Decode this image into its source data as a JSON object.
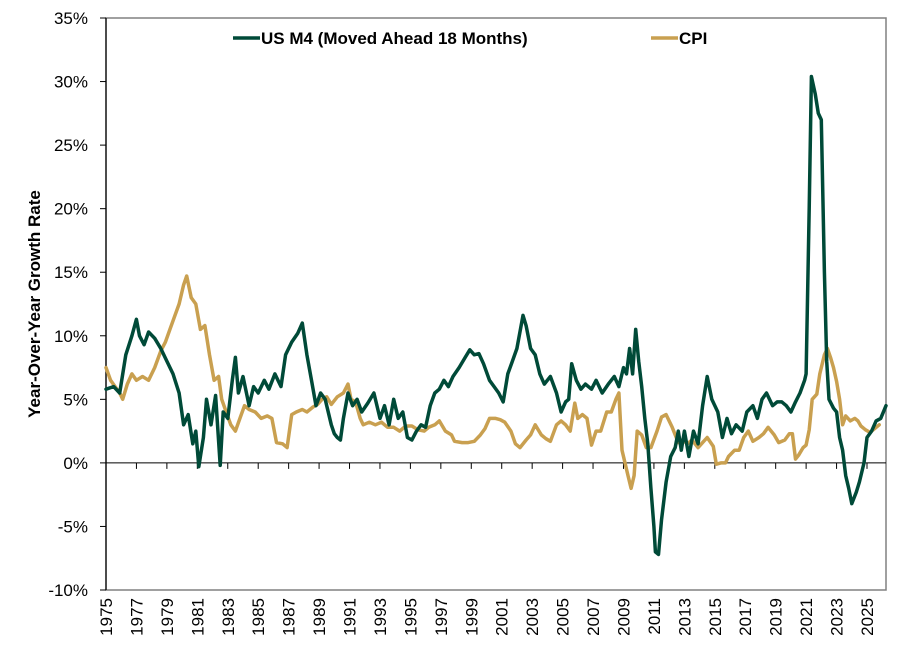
{
  "chart_data": {
    "type": "line",
    "title": "",
    "xlabel": "",
    "ylabel": "Year-Over-Year Growth Rate",
    "ylim": [
      -10,
      35
    ],
    "xlim": [
      1975,
      2026.25
    ],
    "y_ticks": [
      -10,
      -5,
      0,
      5,
      10,
      15,
      20,
      25,
      30,
      35
    ],
    "y_tick_labels": [
      "-10%",
      "-5%",
      "0%",
      "5%",
      "10%",
      "15%",
      "20%",
      "25%",
      "30%",
      "35%"
    ],
    "x_ticks": [
      1975,
      1977,
      1979,
      1981,
      1983,
      1985,
      1987,
      1989,
      1991,
      1993,
      1995,
      1997,
      1999,
      2001,
      2003,
      2005,
      2007,
      2009,
      2011,
      2013,
      2015,
      2017,
      2019,
      2021,
      2023,
      2025
    ],
    "x_tick_labels": [
      "1975",
      "1977",
      "1979",
      "1981",
      "1983",
      "1985",
      "1987",
      "1989",
      "1991",
      "1993",
      "1995",
      "1997",
      "1999",
      "2001",
      "2003",
      "2005",
      "2007",
      "2009",
      "2011",
      "2013",
      "2015",
      "2017",
      "2019",
      "2021",
      "2023",
      "2025"
    ],
    "grid": false,
    "legend_position": "top",
    "series": [
      {
        "name": "US M4 (Moved Ahead 18 Months)",
        "color": "#004a38",
        "x": [
          1975.0,
          1975.5,
          1975.9,
          1976.3,
          1976.7,
          1977.0,
          1977.2,
          1977.5,
          1977.8,
          1978.2,
          1978.6,
          1979.0,
          1979.4,
          1979.8,
          1980.1,
          1980.4,
          1980.7,
          1980.9,
          1981.1,
          1981.4,
          1981.6,
          1981.9,
          1982.2,
          1982.5,
          1982.7,
          1983.0,
          1983.3,
          1983.5,
          1983.7,
          1984.0,
          1984.4,
          1984.7,
          1985.0,
          1985.4,
          1985.7,
          1986.1,
          1986.5,
          1986.8,
          1987.2,
          1987.6,
          1987.9,
          1988.2,
          1988.5,
          1988.8,
          1989.1,
          1989.4,
          1989.8,
          1990.0,
          1990.2,
          1990.4,
          1990.6,
          1990.9,
          1991.2,
          1991.5,
          1991.8,
          1992.2,
          1992.6,
          1993.0,
          1993.3,
          1993.6,
          1993.9,
          1994.2,
          1994.5,
          1994.8,
          1995.1,
          1995.4,
          1995.7,
          1996.0,
          1996.3,
          1996.6,
          1996.9,
          1997.2,
          1997.5,
          1997.8,
          1998.2,
          1998.6,
          1998.9,
          1999.2,
          1999.5,
          1999.8,
          2000.2,
          2000.5,
          2000.8,
          2001.1,
          2001.4,
          2001.7,
          2002.0,
          2002.4,
          2002.6,
          2002.9,
          2003.2,
          2003.5,
          2003.8,
          2004.2,
          2004.6,
          2004.9,
          2005.2,
          2005.4,
          2005.6,
          2005.9,
          2006.2,
          2006.5,
          2006.9,
          2007.2,
          2007.6,
          2008.0,
          2008.4,
          2008.7,
          2009.0,
          2009.2,
          2009.4,
          2009.6,
          2009.8,
          2010.0,
          2010.2,
          2010.4,
          2010.6,
          2010.8,
          2011.0,
          2011.1,
          2011.3,
          2011.5,
          2011.8,
          2012.1,
          2012.4,
          2012.6,
          2012.8,
          2013.0,
          2013.3,
          2013.6,
          2013.9,
          2014.2,
          2014.5,
          2014.8,
          2015.2,
          2015.5,
          2015.8,
          2016.1,
          2016.4,
          2016.8,
          2017.1,
          2017.5,
          2017.8,
          2018.1,
          2018.4,
          2018.8,
          2019.1,
          2019.4,
          2019.7,
          2020.0,
          2020.3,
          2020.6,
          2020.9,
          2021.0,
          2021.2,
          2021.35,
          2021.6,
          2021.8,
          2022.0,
          2022.2,
          2022.35,
          2022.5,
          2022.8,
          2023.0,
          2023.2,
          2023.4,
          2023.6,
          2023.8,
          2024.0,
          2024.3,
          2024.5,
          2024.8,
          2025.0,
          2025.3,
          2025.6,
          2025.9,
          2026.25
        ],
        "values": [
          5.8,
          6.0,
          5.5,
          8.5,
          10.0,
          11.3,
          10.0,
          9.3,
          10.3,
          9.8,
          9.0,
          8.0,
          7.0,
          5.5,
          3.0,
          3.8,
          1.5,
          2.5,
          -0.3,
          2.0,
          5.0,
          3.0,
          5.3,
          -0.2,
          4.0,
          3.5,
          6.5,
          8.3,
          5.5,
          6.8,
          4.5,
          6.0,
          5.5,
          6.5,
          5.8,
          7.0,
          6.0,
          8.5,
          9.5,
          10.2,
          11.0,
          8.5,
          6.5,
          4.5,
          5.5,
          5.0,
          3.0,
          2.3,
          2.0,
          1.8,
          3.5,
          5.5,
          4.5,
          5.0,
          4.0,
          4.7,
          5.5,
          3.5,
          4.5,
          3.0,
          5.0,
          3.5,
          4.0,
          2.0,
          1.8,
          2.5,
          3.0,
          2.8,
          4.5,
          5.5,
          5.8,
          6.5,
          6.0,
          6.8,
          7.5,
          8.3,
          8.9,
          8.5,
          8.6,
          7.8,
          6.5,
          6.0,
          5.5,
          4.8,
          7.0,
          8.0,
          9.0,
          11.6,
          10.8,
          9.0,
          8.5,
          7.0,
          6.2,
          6.8,
          5.5,
          4.0,
          4.8,
          5.0,
          7.8,
          6.5,
          5.8,
          6.2,
          5.8,
          6.5,
          5.5,
          6.2,
          6.8,
          6.0,
          7.5,
          7.0,
          9.0,
          7.0,
          10.5,
          8.0,
          6.0,
          3.5,
          1.5,
          -2.0,
          -5.0,
          -7.0,
          -7.2,
          -4.5,
          -1.5,
          0.5,
          1.2,
          2.5,
          1.0,
          2.5,
          0.5,
          2.5,
          1.5,
          4.5,
          6.8,
          5.0,
          4.0,
          2.0,
          3.5,
          2.3,
          3.0,
          2.5,
          4.0,
          4.5,
          3.5,
          5.0,
          5.5,
          4.5,
          4.8,
          4.8,
          4.5,
          4.0,
          4.8,
          5.5,
          6.5,
          7.0,
          20.0,
          30.4,
          29.0,
          27.5,
          27.0,
          15.0,
          8.0,
          5.0,
          4.3,
          4.0,
          2.0,
          1.0,
          -1.0,
          -2.0,
          -3.2,
          -2.3,
          -1.5,
          0.0,
          2.0,
          2.5,
          3.3,
          3.5,
          4.5
        ]
      },
      {
        "name": "CPI",
        "color": "#c9a050",
        "x": [
          1975.0,
          1975.3,
          1975.6,
          1975.9,
          1976.1,
          1976.4,
          1976.7,
          1977.0,
          1977.4,
          1977.8,
          1978.2,
          1978.6,
          1978.9,
          1979.2,
          1979.5,
          1979.8,
          1980.1,
          1980.3,
          1980.6,
          1980.9,
          1981.2,
          1981.5,
          1981.8,
          1982.1,
          1982.4,
          1982.6,
          1982.9,
          1983.2,
          1983.5,
          1983.8,
          1984.1,
          1984.4,
          1984.8,
          1985.2,
          1985.6,
          1985.9,
          1986.2,
          1986.6,
          1986.9,
          1987.2,
          1987.5,
          1987.9,
          1988.2,
          1988.6,
          1988.9,
          1989.2,
          1989.5,
          1989.8,
          1990.2,
          1990.6,
          1990.9,
          1991.1,
          1991.4,
          1991.7,
          1991.9,
          1992.3,
          1992.7,
          1993.1,
          1993.5,
          1993.9,
          1994.3,
          1994.7,
          1995.1,
          1995.5,
          1995.9,
          1996.2,
          1996.6,
          1996.9,
          1997.3,
          1997.7,
          1997.9,
          1998.4,
          1998.8,
          1999.2,
          1999.6,
          1999.9,
          2000.2,
          2000.6,
          2000.9,
          2001.2,
          2001.6,
          2001.9,
          2002.2,
          2002.6,
          2002.9,
          2003.2,
          2003.6,
          2003.9,
          2004.2,
          2004.6,
          2004.9,
          2005.2,
          2005.5,
          2005.8,
          2006.0,
          2006.3,
          2006.6,
          2006.9,
          2007.2,
          2007.5,
          2007.9,
          2008.2,
          2008.5,
          2008.7,
          2008.9,
          2009.1,
          2009.3,
          2009.5,
          2009.7,
          2009.9,
          2010.2,
          2010.5,
          2010.8,
          2011.2,
          2011.5,
          2011.8,
          2012.2,
          2012.6,
          2012.9,
          2013.2,
          2013.5,
          2013.9,
          2014.2,
          2014.5,
          2014.9,
          2015.1,
          2015.4,
          2015.7,
          2015.9,
          2016.3,
          2016.6,
          2016.9,
          2017.2,
          2017.5,
          2017.9,
          2018.2,
          2018.5,
          2018.9,
          2019.2,
          2019.6,
          2019.9,
          2020.1,
          2020.3,
          2020.5,
          2020.8,
          2021.0,
          2021.2,
          2021.4,
          2021.7,
          2021.9,
          2022.2,
          2022.4,
          2022.6,
          2022.8,
          2023.0,
          2023.2,
          2023.4,
          2023.6,
          2023.9,
          2024.2,
          2024.4,
          2024.6,
          2024.9,
          2025.2,
          2025.5,
          2025.8
        ],
        "values": [
          7.5,
          6.5,
          6.0,
          5.5,
          5.0,
          6.2,
          7.0,
          6.5,
          6.8,
          6.5,
          7.5,
          8.8,
          9.5,
          10.5,
          11.5,
          12.5,
          14.0,
          14.7,
          13.0,
          12.5,
          10.5,
          10.8,
          8.5,
          6.5,
          6.8,
          5.0,
          4.0,
          3.0,
          2.5,
          3.5,
          4.5,
          4.2,
          4.0,
          3.5,
          3.7,
          3.5,
          1.6,
          1.5,
          1.2,
          3.8,
          4.0,
          4.2,
          4.0,
          4.4,
          4.6,
          5.0,
          5.2,
          4.6,
          5.2,
          5.5,
          6.2,
          5.0,
          4.8,
          3.5,
          3.0,
          3.2,
          3.0,
          3.2,
          2.8,
          2.8,
          2.5,
          2.9,
          2.9,
          2.6,
          2.5,
          2.8,
          3.0,
          3.3,
          2.5,
          2.2,
          1.7,
          1.6,
          1.6,
          1.7,
          2.2,
          2.7,
          3.5,
          3.5,
          3.4,
          3.2,
          2.5,
          1.5,
          1.2,
          1.8,
          2.2,
          3.0,
          2.2,
          1.9,
          1.7,
          3.0,
          3.3,
          3.0,
          2.5,
          4.7,
          3.5,
          3.8,
          3.5,
          1.4,
          2.5,
          2.5,
          4.0,
          4.0,
          5.0,
          5.5,
          1.0,
          0.0,
          -1.0,
          -2.0,
          -1.0,
          2.5,
          2.2,
          1.2,
          1.2,
          2.5,
          3.6,
          3.8,
          2.8,
          1.6,
          1.8,
          1.5,
          1.8,
          1.2,
          1.6,
          2.0,
          1.3,
          -0.1,
          0.0,
          0.0,
          0.5,
          1.0,
          1.0,
          2.0,
          2.5,
          1.7,
          2.0,
          2.3,
          2.8,
          2.2,
          1.6,
          1.8,
          2.3,
          2.3,
          0.3,
          0.6,
          1.2,
          1.4,
          2.6,
          5.0,
          5.4,
          7.0,
          8.5,
          9.0,
          8.3,
          7.5,
          6.4,
          5.0,
          3.0,
          3.7,
          3.3,
          3.5,
          3.3,
          2.9,
          2.6,
          2.4,
          2.7,
          3.0
        ]
      }
    ]
  }
}
